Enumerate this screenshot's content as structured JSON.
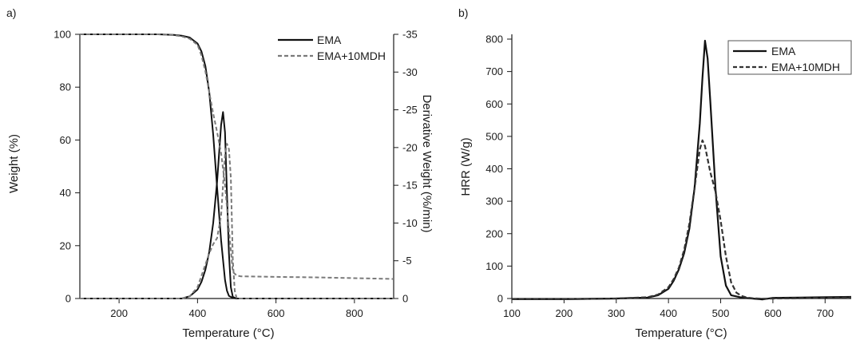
{
  "chart_data": [
    {
      "panel_label": "a)",
      "type": "line",
      "xlabel": "Temperature (°C)",
      "ylabel": "Weight (%)",
      "y2label": "Derivative Weight (%/min)",
      "xlim": [
        100,
        900
      ],
      "ylim": [
        0,
        100
      ],
      "y2lim": [
        0,
        -35
      ],
      "xticks": [
        200,
        400,
        600,
        800
      ],
      "yticks": [
        0,
        20,
        40,
        60,
        80,
        100
      ],
      "y2ticks": [
        0,
        -5,
        -10,
        -15,
        -20,
        -25,
        -30,
        -35
      ],
      "legend_position": "top-right",
      "series": [
        {
          "name": "EMA",
          "style": "solid",
          "color": "#111111",
          "axis": "left",
          "x": [
            100,
            200,
            300,
            340,
            360,
            380,
            400,
            410,
            420,
            430,
            440,
            450,
            460,
            470,
            475,
            480,
            490,
            500,
            600,
            900
          ],
          "y": [
            100,
            100,
            100,
            99.8,
            99.5,
            98.8,
            96.5,
            93.5,
            88,
            78,
            62,
            42,
            22,
            7,
            3,
            1,
            0.2,
            0,
            0,
            0
          ]
        },
        {
          "name": "EMA",
          "style": "solid",
          "color": "#111111",
          "axis": "right",
          "x": [
            100,
            300,
            360,
            380,
            400,
            410,
            420,
            430,
            440,
            450,
            460,
            465,
            470,
            475,
            480,
            485,
            490,
            500,
            900
          ],
          "y": [
            0,
            0,
            0,
            -0.3,
            -1.2,
            -2.2,
            -3.8,
            -6.2,
            -10,
            -15.5,
            -23,
            -24.7,
            -22,
            -14,
            -6,
            -1.5,
            -0.2,
            0,
            0
          ]
        },
        {
          "name": "EMA+10MDH",
          "style": "dashed",
          "color": "#7a7a7a",
          "axis": "left",
          "x": [
            100,
            200,
            300,
            340,
            360,
            380,
            400,
            410,
            420,
            430,
            440,
            450,
            460,
            470,
            480,
            490,
            500,
            510,
            600,
            700,
            800,
            900
          ],
          "y": [
            100,
            100,
            100,
            99.7,
            99.2,
            98.3,
            96,
            92,
            86,
            78,
            70,
            63,
            55,
            43,
            26,
            10,
            8.7,
            8.4,
            8.2,
            8,
            7.7,
            7.4
          ]
        },
        {
          "name": "EMA+10MDH",
          "style": "dashed",
          "color": "#7a7a7a",
          "axis": "right",
          "x": [
            100,
            300,
            360,
            380,
            400,
            410,
            420,
            430,
            440,
            450,
            460,
            465,
            470,
            475,
            480,
            485,
            490,
            495,
            500,
            900
          ],
          "y": [
            0,
            0,
            0,
            -0.3,
            -1.5,
            -3,
            -4.5,
            -6,
            -7.2,
            -8,
            -11,
            -15,
            -19,
            -20.5,
            -19.8,
            -16,
            -5,
            -1,
            0,
            0
          ]
        }
      ]
    },
    {
      "panel_label": "b)",
      "type": "line",
      "xlabel": "Temperature (°C)",
      "ylabel": "HRR (W/g)",
      "xlim": [
        100,
        750
      ],
      "ylim": [
        0,
        800
      ],
      "xticks": [
        100,
        200,
        300,
        400,
        500,
        600,
        700
      ],
      "yticks": [
        0,
        100,
        200,
        300,
        400,
        500,
        600,
        700,
        800
      ],
      "legend_position": "top-right",
      "series": [
        {
          "name": "EMA",
          "style": "solid",
          "color": "#111111",
          "x": [
            100,
            200,
            300,
            360,
            380,
            400,
            410,
            420,
            430,
            440,
            450,
            460,
            465,
            470,
            475,
            480,
            490,
            500,
            510,
            520,
            540,
            560,
            580,
            600,
            650,
            700,
            750
          ],
          "y": [
            -2,
            -2,
            0,
            3,
            10,
            30,
            55,
            90,
            140,
            215,
            340,
            540,
            680,
            795,
            740,
            610,
            340,
            130,
            40,
            10,
            3,
            0,
            -3,
            2,
            3,
            4,
            5
          ]
        },
        {
          "name": "EMA+10MDH",
          "style": "dashed",
          "color": "#333333",
          "x": [
            100,
            200,
            300,
            360,
            380,
            400,
            410,
            420,
            430,
            440,
            450,
            460,
            465,
            470,
            475,
            480,
            490,
            500,
            510,
            520,
            530,
            540,
            550,
            560,
            580,
            600,
            650,
            700,
            750
          ],
          "y": [
            -2,
            -2,
            0,
            4,
            12,
            35,
            60,
            95,
            150,
            230,
            340,
            460,
            488,
            470,
            430,
            390,
            330,
            240,
            130,
            50,
            18,
            8,
            3,
            1,
            -1,
            0,
            1,
            2,
            3
          ]
        }
      ]
    }
  ]
}
